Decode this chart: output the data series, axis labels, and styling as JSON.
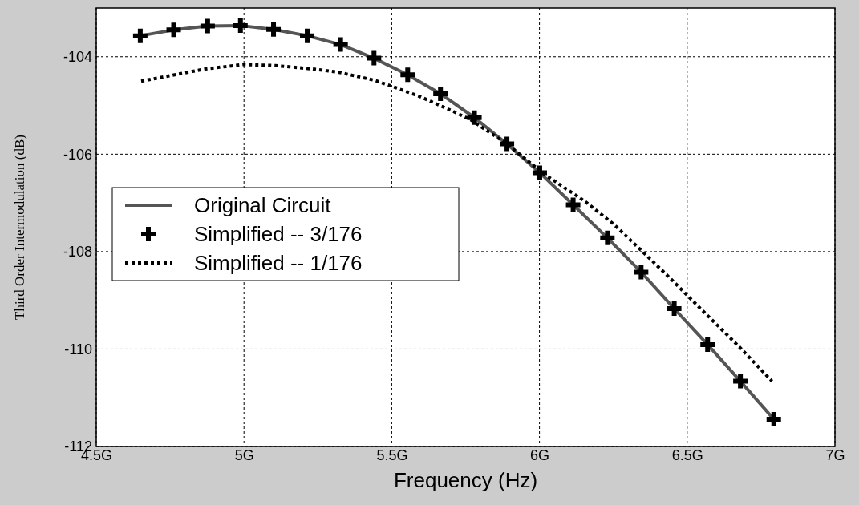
{
  "chart_data": {
    "type": "line",
    "xlabel": "Frequency (Hz)",
    "ylabel": "Third Order Intermodulation (dB)",
    "xlim": [
      4.5,
      7
    ],
    "xticks": [
      {
        "value": 4.5,
        "label": "4.5G"
      },
      {
        "value": 5,
        "label": "5G"
      },
      {
        "value": 5.5,
        "label": "5.5G"
      },
      {
        "value": 6,
        "label": "6G"
      },
      {
        "value": 6.5,
        "label": "6.5G"
      },
      {
        "value": 7,
        "label": "7G"
      }
    ],
    "ylim": [
      -112,
      -103
    ],
    "yticks": [
      -112,
      -110,
      -108,
      -106,
      -104
    ],
    "grid": true,
    "legend": "left",
    "series": [
      {
        "name": "Original Circuit",
        "line_style": "solid",
        "color": "#555555",
        "x": [
          4.649,
          4.762,
          4.877,
          4.988,
          5.1,
          5.214,
          5.327,
          5.44,
          5.554,
          5.665,
          5.78,
          5.89,
          6.001,
          6.114,
          6.23,
          6.344,
          6.456,
          6.569,
          6.68,
          6.793
        ],
        "values": [
          -103.57,
          -103.45,
          -103.37,
          -103.36,
          -103.44,
          -103.57,
          -103.75,
          -104.03,
          -104.37,
          -104.76,
          -105.25,
          -105.79,
          -106.38,
          -107.04,
          -107.72,
          -108.42,
          -109.17,
          -109.91,
          -110.66,
          -111.44
        ]
      },
      {
        "name": "Simplified -- 3/176",
        "type": "scatter",
        "marker": "cross",
        "color": "#000000",
        "x": [
          4.649,
          4.762,
          4.877,
          4.988,
          5.1,
          5.214,
          5.327,
          5.44,
          5.554,
          5.665,
          5.78,
          5.89,
          6.001,
          6.114,
          6.23,
          6.344,
          6.456,
          6.569,
          6.68,
          6.793
        ],
        "values": [
          -103.57,
          -103.45,
          -103.37,
          -103.36,
          -103.44,
          -103.57,
          -103.75,
          -104.03,
          -104.37,
          -104.76,
          -105.25,
          -105.79,
          -106.38,
          -107.04,
          -107.72,
          -108.42,
          -109.17,
          -109.91,
          -110.66,
          -111.44
        ]
      },
      {
        "name": "Simplified -- 1/176",
        "line_style": "dotted",
        "color": "#000000",
        "x": [
          4.652,
          4.87,
          4.997,
          5.105,
          5.232,
          5.322,
          5.44,
          5.503,
          5.593,
          5.711,
          5.766,
          5.89,
          6.016,
          6.152,
          6.25,
          6.347,
          6.443,
          6.54,
          6.637,
          6.685,
          6.787
        ],
        "values": [
          -104.5,
          -104.25,
          -104.16,
          -104.18,
          -104.25,
          -104.32,
          -104.48,
          -104.61,
          -104.81,
          -105.13,
          -105.29,
          -105.79,
          -106.41,
          -106.96,
          -107.43,
          -107.99,
          -108.55,
          -109.14,
          -109.72,
          -110.01,
          -110.66
        ]
      }
    ]
  }
}
